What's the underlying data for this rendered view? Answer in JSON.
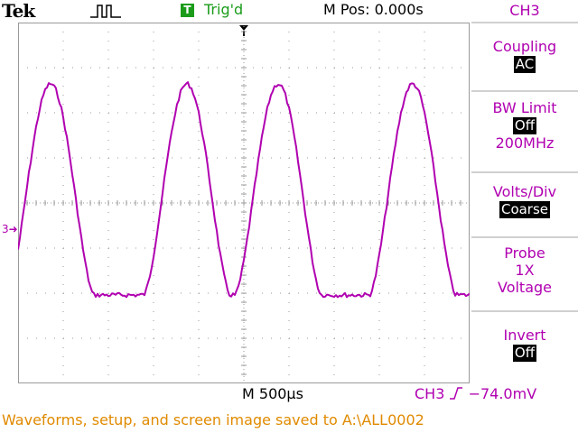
{
  "header": {
    "brand": "Tek",
    "trigger_badge": "T",
    "trigger_status": "Trig'd",
    "main_position": "M Pos: 0.000s"
  },
  "menu": {
    "title": "CH3",
    "items": [
      {
        "label": "Coupling",
        "value": "AC"
      },
      {
        "label": "BW Limit",
        "value": "Off",
        "extra": "200MHz"
      },
      {
        "label": "Volts/Div",
        "value": "Coarse"
      },
      {
        "label": "Probe",
        "line2": "1X",
        "line3": "Voltage"
      },
      {
        "label": "Invert",
        "value": "Off"
      }
    ]
  },
  "channel_marker": "3",
  "footer": {
    "timebase": "M 500µs",
    "trigger_readout": "CH3",
    "trigger_level": "−74.0mV",
    "status_message": "Waveforms, setup, and screen image saved to A:\\ALL0002"
  },
  "colors": {
    "trace": "#b000b0",
    "trigger_green": "#1a9c1a",
    "status_orange": "#e08a00",
    "grid": "#9a9a9a"
  },
  "icons": {
    "acquisition": "pulse-acquire-icon",
    "trigger_slope": "rising-edge-icon",
    "trigger_position": "trigger-arrow-icon"
  }
}
